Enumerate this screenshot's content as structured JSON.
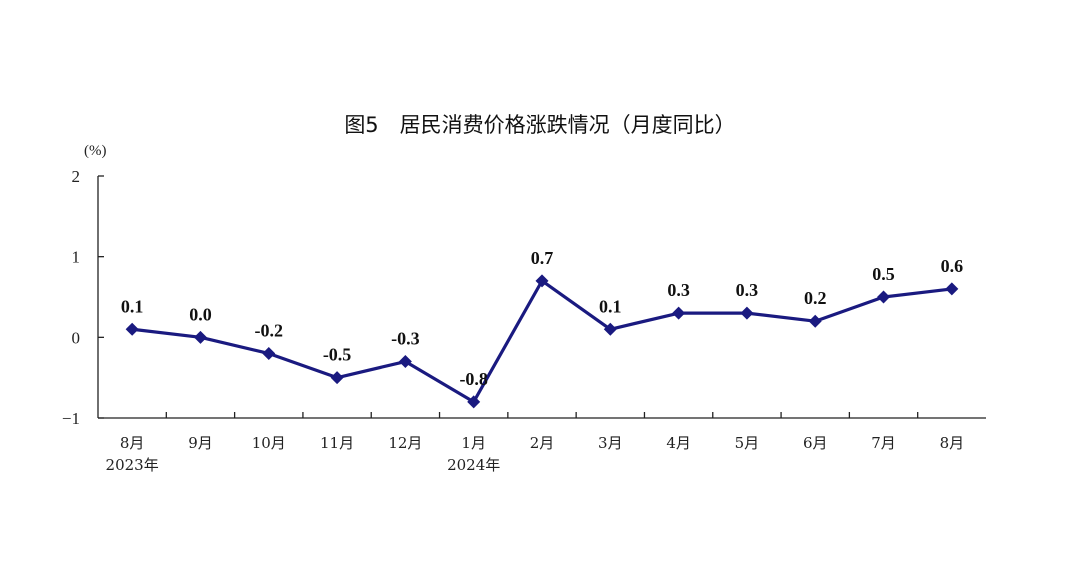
{
  "chart_data": {
    "type": "line",
    "title": "图5　居民消费价格涨跌情况（月度同比）",
    "ylabel": "(%)",
    "xlabel": "",
    "ylim": [
      -1,
      2
    ],
    "yticks": [
      "2",
      "1",
      "0",
      "−1"
    ],
    "ytick_values": [
      2,
      1,
      0,
      -1
    ],
    "categories": [
      "8月",
      "9月",
      "10月",
      "11月",
      "12月",
      "1月",
      "2月",
      "3月",
      "4月",
      "5月",
      "6月",
      "7月",
      "8月"
    ],
    "year_labels": [
      {
        "index": 0,
        "text": "2023年"
      },
      {
        "index": 5,
        "text": "2024年"
      }
    ],
    "series": [
      {
        "values": [
          0.1,
          0.0,
          -0.2,
          -0.5,
          -0.3,
          -0.8,
          0.7,
          0.1,
          0.3,
          0.3,
          0.2,
          0.5,
          0.6
        ],
        "labels": [
          "0.1",
          "0.0",
          "-0.2",
          "-0.5",
          "-0.3",
          "-0.8",
          "0.7",
          "0.1",
          "0.3",
          "0.3",
          "0.2",
          "0.5",
          "0.6"
        ],
        "color": "#1a1a80",
        "marker": "diamond"
      }
    ],
    "grid": false,
    "legend": "none"
  }
}
